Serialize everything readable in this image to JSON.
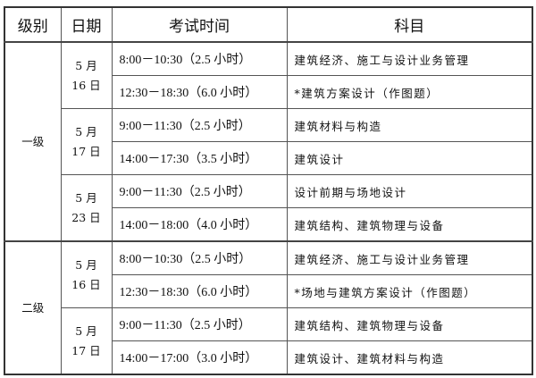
{
  "headers": [
    "级别",
    "日期",
    "考试时间",
    "科目"
  ],
  "groups": [
    {
      "level": "一级",
      "days": [
        {
          "month": "5 月",
          "day": "16 日",
          "sessions": [
            {
              "time": "8:00－10:30（2.5 小时）",
              "subject": "建筑经济、施工与设计业务管理"
            },
            {
              "time": "12:30－18:30（6.0 小时）",
              "subject": "*建筑方案设计（作图题）"
            }
          ]
        },
        {
          "month": "5 月",
          "day": "17 日",
          "sessions": [
            {
              "time": "9:00－11:30（2.5 小时）",
              "subject": "建筑材料与构造"
            },
            {
              "time": "14:00－17:30（3.5 小时）",
              "subject": "建筑设计"
            }
          ]
        },
        {
          "month": "5 月",
          "day": "23 日",
          "sessions": [
            {
              "time": "9:00－11:30（2.5 小时）",
              "subject": "设计前期与场地设计"
            },
            {
              "time": "14:00－18:00（4.0 小时）",
              "subject": "建筑结构、建筑物理与设备"
            }
          ]
        }
      ]
    },
    {
      "level": "二级",
      "days": [
        {
          "month": "5 月",
          "day": "16 日",
          "sessions": [
            {
              "time": "8:00－10:30（2.5 小时）",
              "subject": "建筑经济、施工与设计业务管理"
            },
            {
              "time": "12:30－18:30（6.0 小时）",
              "subject": "*场地与建筑方案设计（作图题）"
            }
          ]
        },
        {
          "month": "5 月",
          "day": "17 日",
          "sessions": [
            {
              "time": "9:00－11:30（2.5 小时）",
              "subject": "建筑结构、建筑物理与设备"
            },
            {
              "time": "14:00－17:00（3.0 小时）",
              "subject": "建筑设计、建筑材料与构造"
            }
          ]
        }
      ]
    }
  ]
}
